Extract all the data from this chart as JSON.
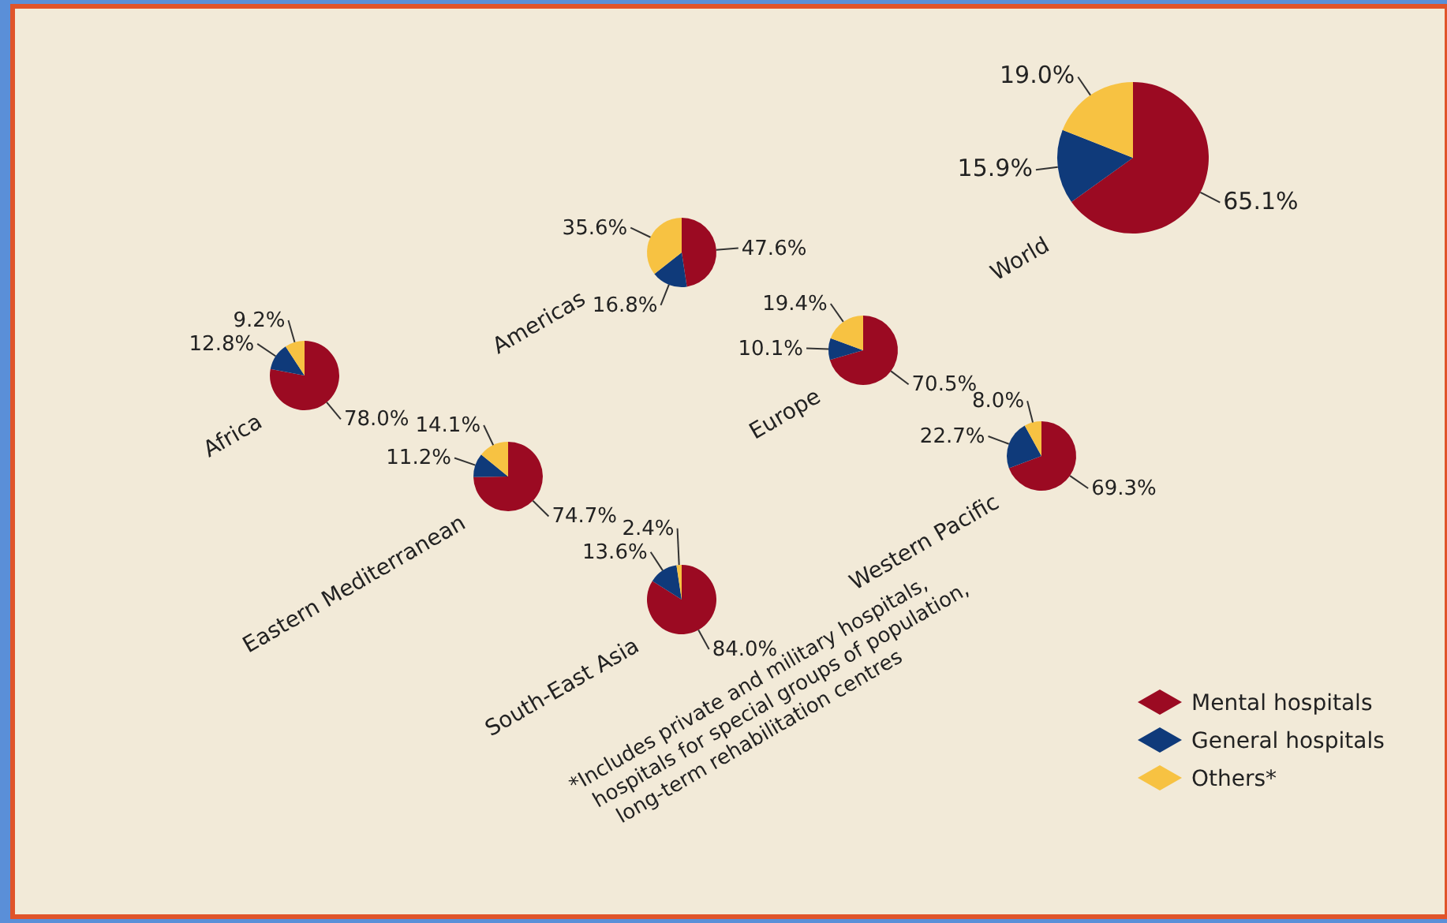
{
  "chart_data": [
    {
      "type": "pie",
      "title": "Africa",
      "values": [
        78.0,
        12.8,
        9.2
      ],
      "value_labels": [
        "78.0%",
        "12.8%",
        "9.2%"
      ],
      "colors": [
        "#9b0a22",
        "#0f3a7a",
        "#f7c242"
      ]
    },
    {
      "type": "pie",
      "title": "Americas",
      "values": [
        47.6,
        16.8,
        35.6
      ],
      "value_labels": [
        "47.6%",
        "16.8%",
        "35.6%"
      ],
      "colors": [
        "#9b0a22",
        "#0f3a7a",
        "#f7c242"
      ]
    },
    {
      "type": "pie",
      "title": "Eastern Mediterranean",
      "values": [
        74.7,
        11.2,
        14.1
      ],
      "value_labels": [
        "74.7%",
        "11.2%",
        "14.1%"
      ],
      "colors": [
        "#9b0a22",
        "#0f3a7a",
        "#f7c242"
      ]
    },
    {
      "type": "pie",
      "title": "Europe",
      "values": [
        70.5,
        10.1,
        19.4
      ],
      "value_labels": [
        "70.5%",
        "10.1%",
        "19.4%"
      ],
      "colors": [
        "#9b0a22",
        "#0f3a7a",
        "#f7c242"
      ]
    },
    {
      "type": "pie",
      "title": "South-East Asia",
      "values": [
        84.0,
        13.6,
        2.4
      ],
      "value_labels": [
        "84.0%",
        "13.6%",
        "2.4%"
      ],
      "colors": [
        "#9b0a22",
        "#0f3a7a",
        "#f7c242"
      ]
    },
    {
      "type": "pie",
      "title": "Western Pacific",
      "values": [
        69.3,
        22.7,
        8.0
      ],
      "value_labels": [
        "69.3%",
        "22.7%",
        "8.0%"
      ],
      "colors": [
        "#9b0a22",
        "#0f3a7a",
        "#f7c242"
      ]
    },
    {
      "type": "pie",
      "title": "World",
      "categories": [
        "Mental hospitals",
        "General hospitals",
        "Others*"
      ],
      "values": [
        65.1,
        15.9,
        19.0
      ],
      "value_labels": [
        "65.1%",
        "15.9%",
        "19.0%"
      ],
      "colors": [
        "#9b0a22",
        "#0f3a7a",
        "#f7c242"
      ],
      "legend": "bottom right",
      "annotations": [
        "*Includes private and military hospitals, hospitals for special groups of population, long-term rehabilitation centres"
      ]
    }
  ]
}
